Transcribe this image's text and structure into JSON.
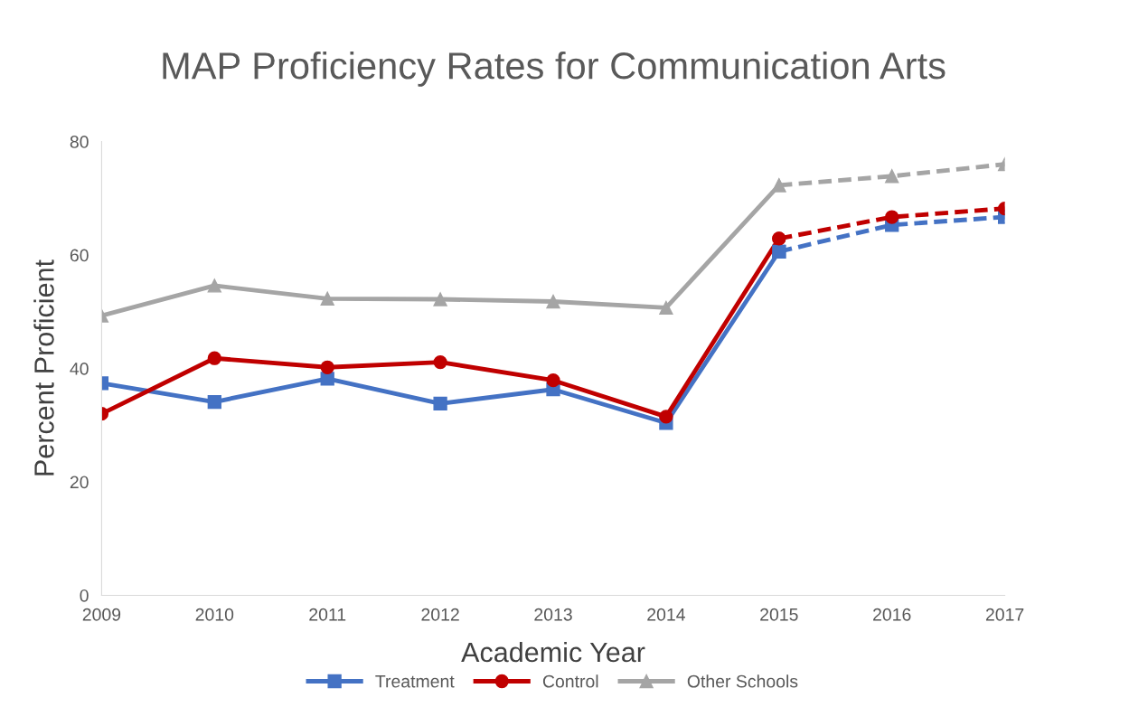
{
  "chart_data": {
    "type": "line",
    "title": "MAP Proficiency Rates for Communication Arts",
    "xlabel": "Academic Year",
    "ylabel": "Percent Proficient",
    "categories": [
      "2009",
      "2010",
      "2011",
      "2012",
      "2013",
      "2014",
      "2015",
      "2016",
      "2017"
    ],
    "ylim": [
      0,
      80
    ],
    "yticks": [
      0,
      20,
      40,
      60,
      80
    ],
    "grid": false,
    "legend": "bottom",
    "series": [
      {
        "name": "Treatment",
        "color": "#4472c4",
        "marker": "square",
        "line_style": "solid",
        "values": [
          37.4,
          34.1,
          38.2,
          33.8,
          36.3,
          30.4,
          60.6,
          null,
          null
        ]
      },
      {
        "name": "Control",
        "color": "#c00000",
        "marker": "circle",
        "line_style": "solid",
        "values": [
          32.0,
          41.8,
          40.2,
          41.1,
          37.9,
          31.5,
          62.9,
          null,
          null
        ]
      },
      {
        "name": "Other Schools",
        "color": "#a5a5a5",
        "marker": "triangle",
        "line_style": "solid",
        "values": [
          49.3,
          54.6,
          52.3,
          52.2,
          51.8,
          50.7,
          72.3,
          null,
          null
        ]
      },
      {
        "color": "#4472c4",
        "marker": "square",
        "line_style": "dashed",
        "values": [
          null,
          null,
          null,
          null,
          null,
          null,
          60.6,
          65.3,
          66.7
        ]
      },
      {
        "color": "#c00000",
        "marker": "circle",
        "line_style": "dashed",
        "values": [
          null,
          null,
          null,
          null,
          null,
          null,
          62.9,
          66.7,
          68.2
        ]
      },
      {
        "color": "#a5a5a5",
        "marker": "triangle",
        "line_style": "dashed",
        "values": [
          null,
          null,
          null,
          null,
          null,
          null,
          72.3,
          73.9,
          76.0
        ]
      }
    ]
  }
}
